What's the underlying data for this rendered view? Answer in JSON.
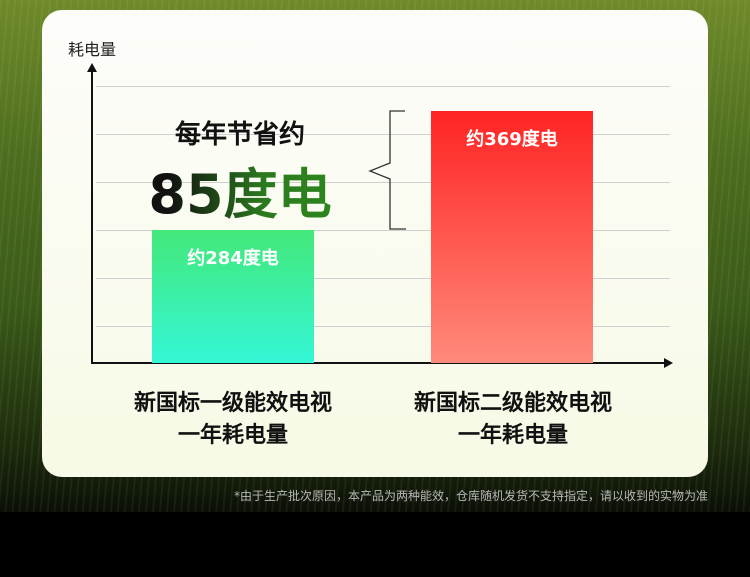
{
  "chart_data": {
    "type": "bar",
    "ylabel": "耗电量",
    "categories": [
      "新国标一级能效电视\n一年耗电量",
      "新国标二级能效电视\n一年耗电量"
    ],
    "category_lines": [
      [
        "新国标一级能效电视",
        "一年耗电量"
      ],
      [
        "新国标二级能效电视",
        "一年耗电量"
      ]
    ],
    "values": [
      284,
      369
    ],
    "data_labels": [
      "约284度电",
      "约369度电"
    ],
    "colors": [
      [
        "#44e87a",
        "#33f7d6"
      ],
      [
        "#ff2424",
        "#ff8a7a"
      ]
    ],
    "grid": true,
    "annotation": {
      "line1": "每年节省约",
      "line2": "85度电",
      "difference": 85
    }
  },
  "footnote": "*由于生产批次原因，本产品为两种能效，仓库随机发货不支持指定，请以收到的实物为准"
}
